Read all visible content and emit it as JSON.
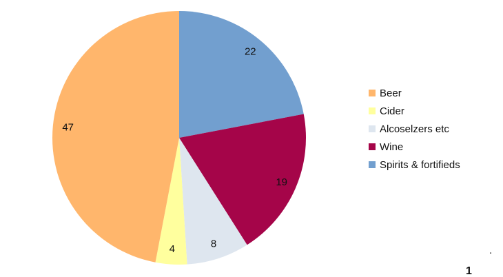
{
  "chart_data": {
    "type": "pie",
    "slices": [
      {
        "name": "Spirits & fortifieds",
        "value": 22,
        "color": "#729fcf"
      },
      {
        "name": "Wine",
        "value": 19,
        "color": "#a50549"
      },
      {
        "name": "Alcoselzers etc",
        "value": 8,
        "color": "#dee6ef"
      },
      {
        "name": "Cider",
        "value": 4,
        "color": "#ffff9e"
      },
      {
        "name": "Beer",
        "value": 47,
        "color": "#ffb66c"
      }
    ],
    "legend_order": [
      "Beer",
      "Cider",
      "Alcoselzers etc",
      "Wine",
      "Spirits & fortifieds"
    ],
    "legend_placement": "right",
    "data_labels": "values",
    "start_direction": "clockwise from top"
  },
  "footer": {
    "dot": ".",
    "page_number": "1"
  }
}
